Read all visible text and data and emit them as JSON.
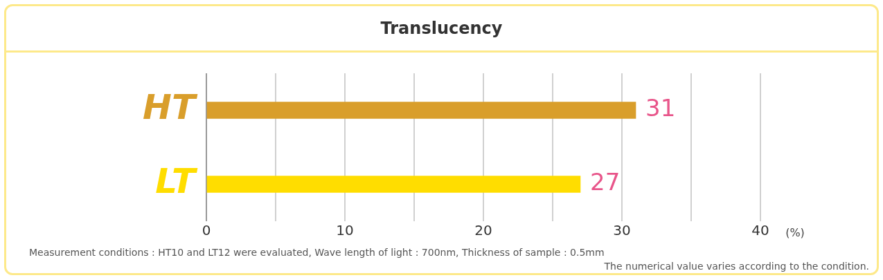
{
  "chart_data": {
    "type": "bar",
    "orientation": "horizontal",
    "title": "Translucency",
    "xlabel": "(%)",
    "categories": [
      "HT",
      "LT"
    ],
    "values": [
      31,
      27
    ],
    "colors": [
      "#d99e2b",
      "#ffdd00"
    ],
    "xlim": [
      0,
      40
    ],
    "xticks": [
      0,
      {
        "value": 5,
        "label": null
      },
      10,
      {
        "value": 15,
        "label": null
      },
      20,
      {
        "value": 25,
        "label": null
      },
      30,
      {
        "value": 35,
        "label": null
      },
      40
    ],
    "grid": "x",
    "data_labels": true,
    "legend": false,
    "annotations": [
      "Measurement conditions : HT10 and LT12 were evaluated,  Wave length of light : 700nm, Thickness of sample : 0.5mm",
      "The numerical value varies according to the condition."
    ]
  }
}
